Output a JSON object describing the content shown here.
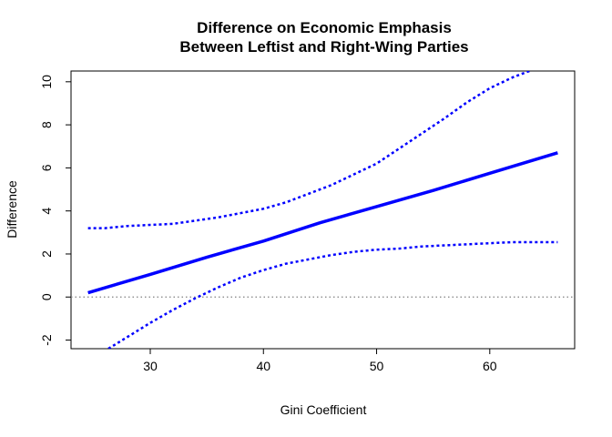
{
  "chart_data": {
    "type": "line",
    "title_lines": [
      "Difference on Economic Emphasis",
      "Between Leftist and Right-Wing Parties"
    ],
    "xlabel": "Gini Coefficient",
    "ylabel": "Difference",
    "xlim": [
      23.0,
      67.5
    ],
    "ylim": [
      -2.4,
      10.5
    ],
    "xticks": [
      30,
      40,
      50,
      60
    ],
    "yticks": [
      -2,
      0,
      2,
      4,
      6,
      8,
      10
    ],
    "reference_line": {
      "y": 0,
      "style": "dotted",
      "color": "#808080"
    },
    "grid": false,
    "legend": "none",
    "series": [
      {
        "role": "estimate",
        "style": "solid",
        "color": "#0000ff",
        "x": [
          24.5,
          30,
          35,
          40,
          45,
          50,
          55,
          60,
          66
        ],
        "y": [
          0.2,
          1.05,
          1.85,
          2.6,
          3.45,
          4.2,
          4.95,
          5.75,
          6.7
        ]
      },
      {
        "role": "upper-bound",
        "style": "dashed",
        "color": "#0000ff",
        "x": [
          24.5,
          26,
          28,
          30,
          32,
          34,
          36,
          38,
          40,
          42,
          44,
          46,
          48,
          50,
          52,
          54,
          56,
          58,
          60,
          62,
          63.5
        ],
        "y": [
          3.2,
          3.2,
          3.3,
          3.35,
          3.4,
          3.55,
          3.7,
          3.9,
          4.1,
          4.4,
          4.8,
          5.2,
          5.7,
          6.2,
          6.9,
          7.6,
          8.3,
          9.05,
          9.7,
          10.2,
          10.5
        ]
      },
      {
        "role": "lower-bound",
        "style": "dashed",
        "color": "#0000ff",
        "x": [
          26.3,
          28,
          30,
          32,
          34,
          36,
          38,
          40,
          42,
          44,
          46,
          48,
          50,
          52,
          54,
          56,
          58,
          60,
          62,
          64,
          66
        ],
        "y": [
          -2.4,
          -1.85,
          -1.2,
          -0.6,
          -0.05,
          0.45,
          0.9,
          1.25,
          1.55,
          1.75,
          1.95,
          2.1,
          2.2,
          2.25,
          2.35,
          2.4,
          2.45,
          2.5,
          2.55,
          2.55,
          2.55
        ]
      }
    ]
  }
}
